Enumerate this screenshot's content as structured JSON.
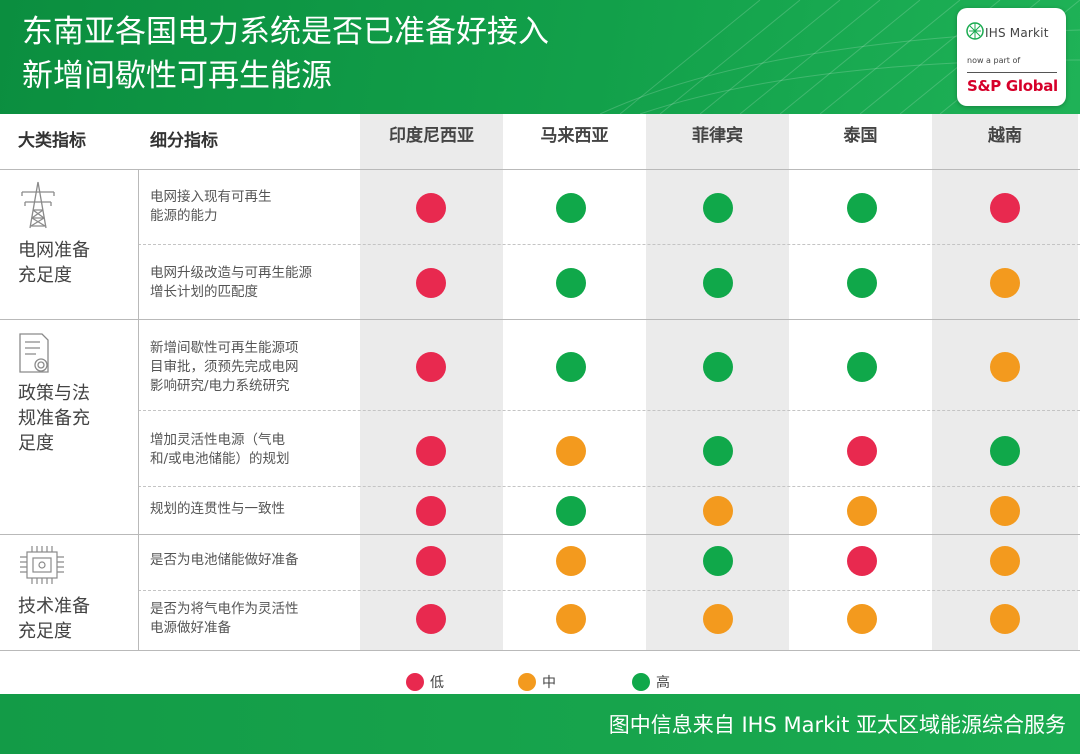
{
  "title": {
    "line1": "东南亚各国电力系统是否已准备好接入",
    "line2": "新增间歇性可再生能源"
  },
  "logo": {
    "brand": "IHS Markit",
    "tagline": "now a part of",
    "parent": "S&P Global"
  },
  "colors": {
    "header_green": "#12a04a",
    "footer_green": "#1aab50",
    "low": "#e8294f",
    "medium": "#f39a1e",
    "high": "#10a84a",
    "shade": "#ebebeb"
  },
  "chart_data": {
    "type": "table",
    "column_headers": {
      "category": "大类指标",
      "subindicator": "细分指标"
    },
    "countries": [
      "印度尼西亚",
      "马来西亚",
      "菲律宾",
      "泰国",
      "越南"
    ],
    "categories": [
      {
        "name_line1": "电网准备",
        "name_line2": "充足度",
        "name_line3": "",
        "icon": "power-tower-icon"
      },
      {
        "name_line1": "政策与法",
        "name_line2": "规准备充",
        "name_line3": "足度",
        "icon": "document-seal-icon"
      },
      {
        "name_line1": "技术准备",
        "name_line2": "充足度",
        "name_line3": "",
        "icon": "chip-icon"
      }
    ],
    "rows": [
      {
        "category": 0,
        "lines": [
          "电网接入现有可再生",
          "能源的能力"
        ],
        "ratings": [
          "低",
          "高",
          "高",
          "高",
          "低"
        ]
      },
      {
        "category": 0,
        "lines": [
          "电网升级改造与可再生能源",
          "增长计划的匹配度"
        ],
        "ratings": [
          "低",
          "高",
          "高",
          "高",
          "中"
        ]
      },
      {
        "category": 1,
        "lines": [
          "新增间歇性可再生能源项",
          "目审批，须预先完成电网",
          "影响研究/电力系统研究"
        ],
        "ratings": [
          "低",
          "高",
          "高",
          "高",
          "中"
        ]
      },
      {
        "category": 1,
        "lines": [
          "增加灵活性电源（气电",
          "和/或电池储能）的规划"
        ],
        "ratings": [
          "低",
          "中",
          "高",
          "低",
          "高"
        ]
      },
      {
        "category": 1,
        "lines": [
          "规划的连贯性与一致性"
        ],
        "ratings": [
          "低",
          "高",
          "中",
          "中",
          "中"
        ]
      },
      {
        "category": 2,
        "lines": [
          "是否为电池储能做好准备"
        ],
        "ratings": [
          "低",
          "中",
          "高",
          "低",
          "中"
        ]
      },
      {
        "category": 2,
        "lines": [
          "是否为将气电作为灵活性",
          "电源做好准备"
        ],
        "ratings": [
          "低",
          "中",
          "中",
          "中",
          "中"
        ]
      }
    ],
    "legend": [
      {
        "label": "低",
        "color": "#e8294f"
      },
      {
        "label": "中",
        "color": "#f39a1e"
      },
      {
        "label": "高",
        "color": "#10a84a"
      }
    ]
  },
  "footer": {
    "source": "图中信息来自 IHS Markit 亚太区域能源综合服务"
  }
}
